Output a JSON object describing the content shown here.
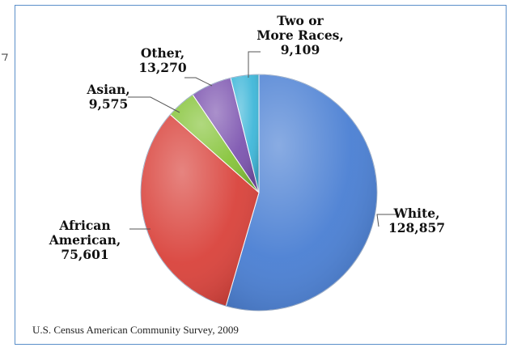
{
  "chart_data": {
    "type": "pie",
    "title": "",
    "legend": "none",
    "slices": [
      {
        "label": "White",
        "value": 128857,
        "color": "#4a7fd3",
        "value_text": "128,857"
      },
      {
        "label": "African American",
        "value": 75601,
        "color": "#d9423b",
        "value_text": "75,601"
      },
      {
        "label": "Asian",
        "value": 9575,
        "color": "#86c43a",
        "value_text": "9,575"
      },
      {
        "label": "Other",
        "value": 13270,
        "color": "#7d55b0",
        "value_text": "13,270"
      },
      {
        "label": "Two or More Races",
        "value": 9109,
        "color": "#3fb7d9",
        "value_text": "9,109"
      }
    ],
    "labels_text": {
      "white": [
        "White,",
        "128,857"
      ],
      "african_american": [
        "African",
        "American,",
        "75,601"
      ],
      "asian": [
        "Asian,",
        "9,575"
      ],
      "other": [
        "Other,",
        "13,270"
      ],
      "two_or_more": [
        "Two or",
        "More Races,",
        "9,109"
      ]
    }
  },
  "source": "U.S. Census American Community Survey, 2009"
}
